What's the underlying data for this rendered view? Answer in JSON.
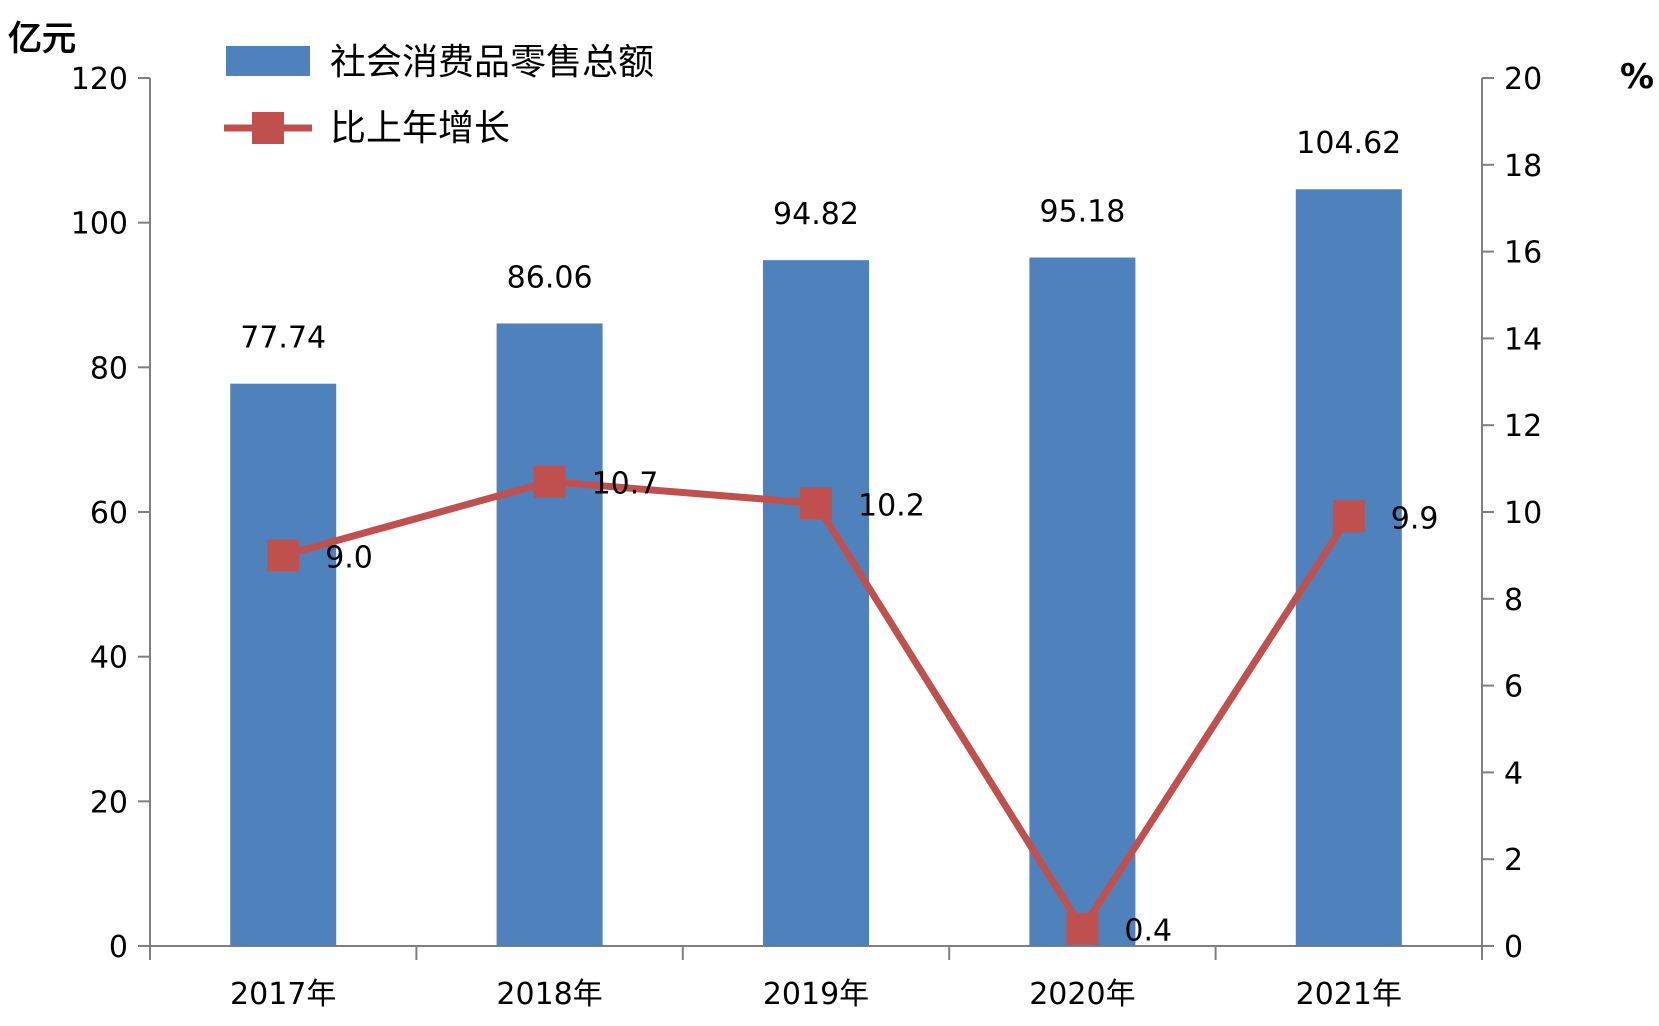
{
  "chart_data": {
    "type": "bar",
    "categories": [
      "2017年",
      "2018年",
      "2019年",
      "2020年",
      "2021年"
    ],
    "series": [
      {
        "name": "社会消费品零售总额",
        "type": "bar",
        "axis": "left",
        "color": "#4F81BD",
        "values": [
          77.74,
          86.06,
          94.82,
          95.18,
          104.62
        ],
        "labels": [
          "77.74",
          "86.06",
          "94.82",
          "95.18",
          "104.62"
        ]
      },
      {
        "name": "比上年增长",
        "type": "line",
        "axis": "right",
        "color": "#C0504D",
        "values": [
          9.0,
          10.7,
          10.2,
          0.4,
          9.9
        ],
        "labels": [
          "9.0",
          "10.7",
          "10.2",
          "0.4",
          "9.9"
        ]
      }
    ],
    "y_left": {
      "unit": "亿元",
      "ylim": [
        0,
        120
      ],
      "ticks": [
        0,
        20,
        40,
        60,
        80,
        100,
        120
      ]
    },
    "y_right": {
      "unit": "%",
      "ylim": [
        0,
        20
      ],
      "ticks": [
        0,
        2,
        4,
        6,
        8,
        10,
        12,
        14,
        16,
        18,
        20
      ]
    },
    "grid": false,
    "legend_position": "top-left"
  }
}
